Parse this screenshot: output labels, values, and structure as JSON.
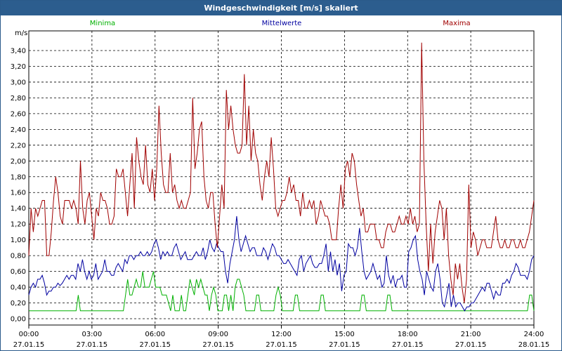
{
  "window": {
    "title": "Windgeschwindigkeit [m/s] skaliert"
  },
  "colors": {
    "minima": "#00b000",
    "mittelwerte": "#0000a0",
    "maxima": "#a00000",
    "title_bg": "#2c5d8e"
  },
  "chart_data": {
    "type": "line",
    "title": "Windgeschwindigkeit [m/s] skaliert",
    "ylabel": "m/s",
    "ylim": [
      0,
      3.5
    ],
    "xlim_hours": [
      0,
      24
    ],
    "grid": true,
    "legend_placement": "top",
    "y_ticks": [
      "0,00",
      "0,20",
      "0,40",
      "0,60",
      "0,80",
      "1,00",
      "1,20",
      "1,40",
      "1,60",
      "1,80",
      "2,00",
      "2,20",
      "2,40",
      "2,60",
      "2,80",
      "3,00",
      "3,20",
      "3,40"
    ],
    "x_ticks": [
      {
        "time": "00:00",
        "date": "27.01.15"
      },
      {
        "time": "03:00",
        "date": "27.01.15"
      },
      {
        "time": "06:00",
        "date": "27.01.15"
      },
      {
        "time": "09:00",
        "date": "27.01.15"
      },
      {
        "time": "12:00",
        "date": "27.01.15"
      },
      {
        "time": "15:00",
        "date": "27.01.15"
      },
      {
        "time": "18:00",
        "date": "27.01.15"
      },
      {
        "time": "21:00",
        "date": "27.01.15"
      },
      {
        "time": "24:00",
        "date": "28.01.15"
      }
    ],
    "series": [
      {
        "name": "Minima",
        "color": "#00b000",
        "values": [
          0.1,
          0.1,
          0.1,
          0.1,
          0.1,
          0.1,
          0.1,
          0.1,
          0.1,
          0.1,
          0.1,
          0.1,
          0.1,
          0.1,
          0.1,
          0.1,
          0.1,
          0.1,
          0.1,
          0.1,
          0.1,
          0.1,
          0.1,
          0.3,
          0.1,
          0.1,
          0.1,
          0.1,
          0.1,
          0.1,
          0.1,
          0.1,
          0.1,
          0.1,
          0.1,
          0.1,
          0.1,
          0.1,
          0.1,
          0.1,
          0.1,
          0.1,
          0.1,
          0.1,
          0.1,
          0.3,
          0.5,
          0.3,
          0.3,
          0.4,
          0.5,
          0.4,
          0.4,
          0.6,
          0.4,
          0.4,
          0.4,
          0.5,
          0.6,
          0.4,
          0.4,
          0.4,
          0.3,
          0.3,
          0.3,
          0.2,
          0.1,
          0.3,
          0.1,
          0.1,
          0.1,
          0.3,
          0.1,
          0.1,
          0.3,
          0.5,
          0.4,
          0.3,
          0.5,
          0.4,
          0.5,
          0.4,
          0.3,
          0.3,
          0.1,
          0.3,
          0.4,
          0.3,
          0.1,
          0.1,
          0.1,
          0.3,
          0.3,
          0.1,
          0.3,
          0.1,
          0.4,
          0.5,
          0.5,
          0.4,
          0.3,
          0.1,
          0.1,
          0.1,
          0.1,
          0.1,
          0.3,
          0.3,
          0.1,
          0.1,
          0.1,
          0.1,
          0.1,
          0.1,
          0.1,
          0.3,
          0.4,
          0.3,
          0.1,
          0.1,
          0.1,
          0.1,
          0.1,
          0.1,
          0.3,
          0.3,
          0.1,
          0.1,
          0.1,
          0.1,
          0.1,
          0.1,
          0.1,
          0.1,
          0.1,
          0.1,
          0.3,
          0.3,
          0.1,
          0.1,
          0.1,
          0.1,
          0.1,
          0.1,
          0.1,
          0.1,
          0.1,
          0.1,
          0.1,
          0.1,
          0.1,
          0.1,
          0.1,
          0.1,
          0.1,
          0.3,
          0.3,
          0.1,
          0.1,
          0.1,
          0.1,
          0.1,
          0.1,
          0.1,
          0.1,
          0.1,
          0.1,
          0.3,
          0.3,
          0.1,
          0.1,
          0.1,
          0.1,
          0.1,
          0.1,
          0.1,
          0.1,
          0.1,
          0.1,
          0.1,
          0.1,
          0.1,
          0.1,
          0.1,
          0.1,
          0.1,
          0.1,
          0.1,
          0.1,
          0.1,
          0.1,
          0.1,
          0.1,
          0.1,
          0.1,
          0.1,
          0.1,
          0.1,
          0.1,
          0.1,
          0.1,
          0.1,
          0.1,
          0.1,
          0.1,
          0.1,
          0.1,
          0.1,
          0.1,
          0.1,
          0.1,
          0.1,
          0.1,
          0.1,
          0.1,
          0.1,
          0.1,
          0.1,
          0.1,
          0.1,
          0.1,
          0.1,
          0.1,
          0.1,
          0.1,
          0.1,
          0.1,
          0.1,
          0.1,
          0.1,
          0.1,
          0.1,
          0.1,
          0.3,
          0.3,
          0.1
        ]
      },
      {
        "name": "Mittelwerte",
        "color": "#0000a0",
        "values": [
          0.3,
          0.4,
          0.45,
          0.4,
          0.5,
          0.5,
          0.55,
          0.45,
          0.3,
          0.35,
          0.35,
          0.4,
          0.4,
          0.45,
          0.42,
          0.45,
          0.5,
          0.55,
          0.5,
          0.55,
          0.55,
          0.5,
          0.7,
          0.6,
          0.75,
          0.6,
          0.5,
          0.6,
          0.5,
          0.55,
          0.7,
          0.5,
          0.55,
          0.6,
          0.75,
          0.6,
          0.6,
          0.55,
          0.55,
          0.65,
          0.7,
          0.65,
          0.6,
          0.75,
          0.7,
          0.8,
          0.8,
          0.75,
          0.8,
          0.8,
          0.85,
          0.8,
          0.8,
          0.85,
          0.8,
          0.85,
          0.95,
          1.0,
          0.9,
          0.75,
          0.85,
          0.8,
          0.85,
          0.8,
          0.8,
          0.9,
          0.95,
          0.85,
          0.75,
          0.8,
          0.85,
          0.75,
          0.75,
          0.75,
          0.8,
          0.85,
          0.8,
          0.8,
          0.9,
          0.75,
          0.85,
          1.0,
          0.9,
          0.85,
          0.95,
          0.9,
          0.85,
          0.85,
          0.6,
          0.45,
          0.7,
          0.85,
          1.0,
          1.3,
          1.0,
          0.85,
          0.95,
          1.05,
          0.95,
          0.85,
          0.9,
          0.9,
          0.8,
          0.8,
          0.8,
          0.9,
          0.85,
          0.75,
          0.85,
          0.95,
          0.9,
          0.8,
          0.8,
          0.75,
          0.7,
          0.7,
          0.75,
          0.7,
          0.65,
          0.6,
          0.55,
          0.75,
          0.8,
          0.6,
          0.7,
          0.75,
          0.8,
          0.7,
          0.65,
          0.65,
          0.7,
          0.7,
          0.8,
          0.95,
          0.6,
          0.85,
          0.6,
          0.75,
          0.55,
          0.7,
          0.35,
          0.55,
          0.6,
          0.95,
          0.9,
          0.9,
          0.8,
          0.9,
          1.15,
          0.85,
          0.6,
          0.5,
          0.55,
          0.6,
          0.7,
          0.6,
          0.5,
          0.55,
          0.4,
          0.45,
          0.8,
          0.55,
          0.45,
          0.55,
          0.4,
          0.5,
          0.5,
          0.55,
          0.4,
          0.4,
          0.85,
          0.9,
          1.0,
          1.05,
          0.75,
          0.6,
          0.5,
          0.3,
          0.6,
          0.5,
          0.4,
          0.35,
          0.6,
          0.7,
          0.5,
          0.2,
          0.15,
          0.3,
          0.45,
          0.15,
          0.3,
          0.15,
          0.2,
          0.2,
          0.15,
          0.1,
          0.15,
          0.15,
          0.2,
          0.2,
          0.25,
          0.3,
          0.35,
          0.4,
          0.35,
          0.45,
          0.45,
          0.35,
          0.25,
          0.35,
          0.3,
          0.3,
          0.45,
          0.45,
          0.5,
          0.45,
          0.55,
          0.6,
          0.7,
          0.65,
          0.55,
          0.55,
          0.55,
          0.5,
          0.6,
          0.75,
          0.8
        ]
      },
      {
        "name": "Maxima",
        "color": "#a00000",
        "values": [
          0.8,
          1.4,
          1.1,
          1.4,
          1.3,
          1.4,
          1.5,
          1.5,
          0.8,
          0.8,
          1.1,
          1.5,
          1.8,
          1.6,
          1.3,
          1.2,
          1.5,
          1.5,
          1.5,
          1.4,
          1.5,
          1.4,
          1.2,
          2.0,
          1.4,
          1.2,
          1.5,
          1.6,
          1.3,
          1.0,
          1.4,
          1.3,
          1.6,
          1.5,
          1.5,
          1.4,
          1.2,
          1.2,
          1.3,
          1.9,
          1.8,
          1.8,
          1.9,
          1.6,
          1.3,
          1.7,
          2.1,
          1.4,
          2.3,
          2.0,
          1.8,
          1.7,
          2.2,
          1.7,
          1.6,
          1.9,
          1.5,
          1.9,
          2.7,
          2.1,
          1.7,
          1.6,
          1.6,
          2.1,
          1.6,
          1.7,
          1.5,
          1.4,
          1.5,
          1.4,
          1.4,
          1.5,
          1.6,
          2.8,
          1.9,
          2.1,
          2.4,
          2.5,
          1.8,
          1.5,
          1.4,
          1.6,
          1.6,
          1.2,
          0.9,
          1.3,
          1.7,
          1.4,
          2.9,
          2.4,
          2.7,
          2.4,
          2.2,
          2.1,
          2.1,
          2.2,
          3.1,
          2.2,
          2.7,
          2.0,
          2.4,
          2.1,
          2.0,
          1.7,
          1.5,
          1.8,
          2.0,
          1.8,
          2.3,
          1.9,
          1.4,
          1.3,
          1.4,
          1.5,
          1.5,
          1.6,
          1.8,
          1.6,
          1.7,
          1.5,
          1.5,
          1.3,
          1.6,
          1.4,
          1.4,
          1.5,
          1.4,
          1.5,
          1.2,
          1.3,
          1.5,
          1.4,
          1.3,
          1.3,
          1.2,
          1.0,
          1.0,
          1.0,
          1.4,
          1.7,
          1.4,
          1.9,
          2.0,
          1.8,
          2.1,
          2.0,
          1.7,
          1.5,
          1.3,
          1.4,
          1.1,
          1.1,
          1.2,
          1.2,
          1.2,
          1.0,
          1.0,
          0.9,
          0.9,
          1.1,
          1.2,
          1.2,
          1.1,
          1.1,
          1.2,
          1.3,
          1.2,
          1.2,
          1.3,
          1.2,
          1.4,
          1.2,
          1.3,
          1.1,
          1.2,
          3.5,
          2.0,
          1.2,
          0.6,
          1.2,
          0.7,
          1.1,
          1.3,
          1.5,
          1.4,
          1.0,
          1.4,
          0.8,
          0.5,
          0.3,
          0.7,
          0.5,
          0.7,
          0.4,
          0.2,
          0.5,
          1.7,
          0.9,
          1.1,
          1.0,
          0.8,
          0.9,
          1.0,
          1.0,
          0.9,
          0.9,
          0.9,
          1.1,
          1.3,
          1.0,
          0.9,
          0.9,
          1.0,
          0.9,
          0.9,
          1.0,
          1.0,
          0.9,
          0.9,
          1.0,
          0.9,
          0.9,
          1.0,
          1.1,
          1.3,
          1.5
        ]
      }
    ]
  }
}
